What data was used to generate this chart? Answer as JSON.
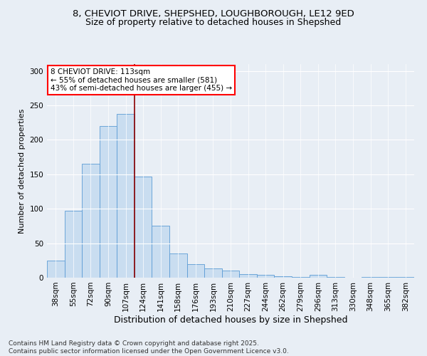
{
  "title_line1": "8, CHEVIOT DRIVE, SHEPSHED, LOUGHBOROUGH, LE12 9ED",
  "title_line2": "Size of property relative to detached houses in Shepshed",
  "xlabel": "Distribution of detached houses by size in Shepshed",
  "ylabel": "Number of detached properties",
  "categories": [
    "38sqm",
    "55sqm",
    "72sqm",
    "90sqm",
    "107sqm",
    "124sqm",
    "141sqm",
    "158sqm",
    "176sqm",
    "193sqm",
    "210sqm",
    "227sqm",
    "244sqm",
    "262sqm",
    "279sqm",
    "296sqm",
    "313sqm",
    "330sqm",
    "348sqm",
    "365sqm",
    "382sqm"
  ],
  "values": [
    25,
    97,
    165,
    220,
    238,
    147,
    75,
    35,
    20,
    13,
    10,
    5,
    4,
    2,
    1,
    4,
    1,
    0,
    1,
    1,
    1
  ],
  "bar_color": "#c9ddf0",
  "bar_edge_color": "#5b9bd5",
  "vline_x_index": 4,
  "vline_color": "#8b0000",
  "annotation_text": "8 CHEVIOT DRIVE: 113sqm\n← 55% of detached houses are smaller (581)\n43% of semi-detached houses are larger (455) →",
  "annotation_box_color": "white",
  "annotation_box_edge_color": "red",
  "ylim": [
    0,
    310
  ],
  "yticks": [
    0,
    50,
    100,
    150,
    200,
    250,
    300
  ],
  "footnote": "Contains HM Land Registry data © Crown copyright and database right 2025.\nContains public sector information licensed under the Open Government Licence v3.0.",
  "background_color": "#e8eef5",
  "plot_bg_color": "#e8eef5",
  "title_fontsize": 9.5,
  "subtitle_fontsize": 9,
  "xlabel_fontsize": 9,
  "ylabel_fontsize": 8,
  "tick_fontsize": 7.5,
  "annotation_fontsize": 7.5,
  "footnote_fontsize": 6.5
}
